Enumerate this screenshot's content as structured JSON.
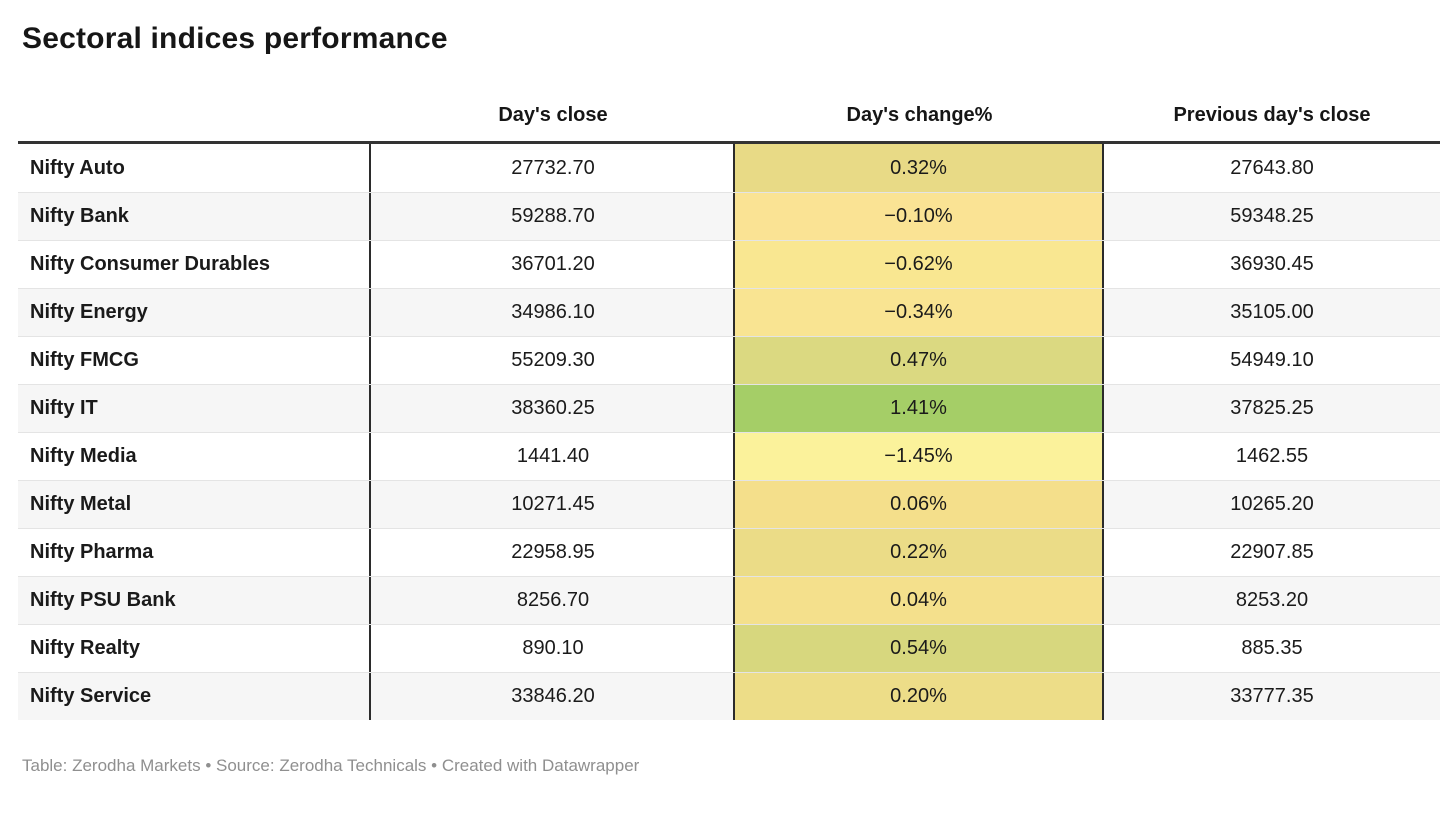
{
  "title": "Sectoral indices performance",
  "chart_data": {
    "type": "table",
    "title": "Sectoral indices performance",
    "header": {
      "col0": "",
      "col1": "Day's close",
      "col2": "Day's change%",
      "col3": "Previous day's close"
    },
    "heatmap_column": "Day's change%",
    "heatmap_scale": {
      "min_color": "#fbf29b",
      "mid_color": "#f4df8b",
      "max_color": "#a5ce67",
      "min_value": -1.45,
      "max_value": 1.41
    },
    "rows": [
      {
        "name": "Nifty Auto",
        "close": "27732.70",
        "change": "0.32%",
        "prev": "27643.80",
        "change_bg": "#e8da86"
      },
      {
        "name": "Nifty Bank",
        "close": "59288.70",
        "change": "−0.10%",
        "prev": "59348.25",
        "change_bg": "#fae394"
      },
      {
        "name": "Nifty Consumer Durables",
        "close": "36701.20",
        "change": "−0.62%",
        "prev": "36930.45",
        "change_bg": "#f9e791"
      },
      {
        "name": "Nifty Energy",
        "close": "34986.10",
        "change": "−0.34%",
        "prev": "35105.00",
        "change_bg": "#f9e492"
      },
      {
        "name": "Nifty FMCG",
        "close": "55209.30",
        "change": "0.47%",
        "prev": "54949.10",
        "change_bg": "#dbd981"
      },
      {
        "name": "Nifty IT",
        "close": "38360.25",
        "change": "1.41%",
        "prev": "37825.25",
        "change_bg": "#a5ce67"
      },
      {
        "name": "Nifty Media",
        "close": "1441.40",
        "change": "−1.45%",
        "prev": "1462.55",
        "change_bg": "#fbf29b"
      },
      {
        "name": "Nifty Metal",
        "close": "10271.45",
        "change": "0.06%",
        "prev": "10265.20",
        "change_bg": "#f4df8b"
      },
      {
        "name": "Nifty Pharma",
        "close": "22958.95",
        "change": "0.22%",
        "prev": "22907.85",
        "change_bg": "#ebdc87"
      },
      {
        "name": "Nifty PSU Bank",
        "close": "8256.70",
        "change": "0.04%",
        "prev": "8253.20",
        "change_bg": "#f4e08c"
      },
      {
        "name": "Nifty Realty",
        "close": "890.10",
        "change": "0.54%",
        "prev": "885.35",
        "change_bg": "#d7d77e"
      },
      {
        "name": "Nifty Service",
        "close": "33846.20",
        "change": "0.20%",
        "prev": "33777.35",
        "change_bg": "#eddd88"
      }
    ]
  },
  "colors": {
    "header_rule": "#333333",
    "column_rule": "#2b2b2b",
    "row_alt_bg": "#f6f6f6",
    "row_divider": "#e4e4e4",
    "text": "#161616",
    "footer_text": "#8f8f8f"
  },
  "footer": {
    "table_credit": "Table: Zerodha Markets",
    "sep1": " • ",
    "source_label": "Source: ",
    "source_name": "Zerodha Technicals",
    "sep2": " • ",
    "created_with": "Created with Datawrapper"
  }
}
